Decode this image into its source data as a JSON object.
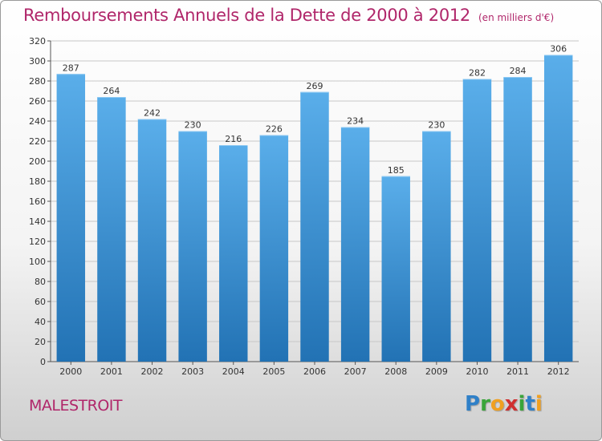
{
  "title": "Remboursements Annuels de la Dette de 2000 à 2012",
  "unit": "(en milliers d'€)",
  "city": "MALESTROIT",
  "logo": {
    "letters": [
      "P",
      "r",
      "o",
      "x",
      "i",
      "t",
      "i"
    ],
    "colors": [
      "#2f80c8",
      "#3aa53a",
      "#f0a020",
      "#d03030",
      "#3aa53a",
      "#2f80c8",
      "#f0a020"
    ]
  },
  "colors": {
    "bar_top": "#5aaeea",
    "bar_bottom": "#2272b4",
    "title": "#b0266a",
    "grid": "#c8c8c8"
  },
  "chart_data": {
    "type": "bar",
    "categories": [
      "2000",
      "2001",
      "2002",
      "2003",
      "2004",
      "2005",
      "2006",
      "2007",
      "2008",
      "2009",
      "2010",
      "2011",
      "2012"
    ],
    "values": [
      287,
      264,
      242,
      230,
      216,
      226,
      269,
      234,
      185,
      230,
      282,
      284,
      306
    ],
    "ylim": [
      0,
      320
    ],
    "yticks": [
      0,
      20,
      40,
      60,
      80,
      100,
      120,
      140,
      160,
      180,
      200,
      220,
      240,
      260,
      280,
      300,
      320
    ],
    "grid": true,
    "data_labels": true
  }
}
